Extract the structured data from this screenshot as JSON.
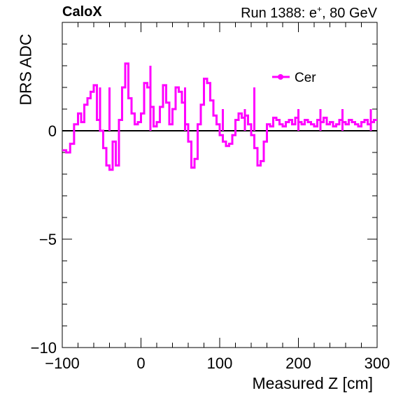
{
  "header": {
    "left_title": "CaloX",
    "right_title_prefix": "Run 1388: e",
    "right_title_sup": "+",
    "right_title_suffix": ", 80 GeV"
  },
  "chart_data": {
    "type": "line",
    "title": "",
    "xlabel": "Measured Z [cm]",
    "ylabel": "DRS ADC",
    "xlim": [
      -100,
      300
    ],
    "ylim": [
      -10,
      5
    ],
    "x_ticks": [
      -100,
      0,
      100,
      200,
      300
    ],
    "x_tick_labels": [
      "−100",
      "0",
      "100",
      "200",
      "300"
    ],
    "y_ticks": [
      -10,
      -5,
      0
    ],
    "y_tick_labels": [
      "−10",
      "−5",
      "0"
    ],
    "reference_line_y": 0,
    "legend_position": "top-right",
    "series": [
      {
        "name": "Cer",
        "color": "#ff00ff",
        "step": true,
        "x": [
          -100,
          -95,
          -90,
          -85,
          -80,
          -76,
          -72,
          -68,
          -64,
          -60,
          -56,
          -52,
          -48,
          -44,
          -40,
          -36,
          -32,
          -28,
          -24,
          -20,
          -16,
          -12,
          -8,
          -4,
          0,
          4,
          8,
          12,
          16,
          20,
          24,
          28,
          32,
          36,
          40,
          44,
          48,
          52,
          56,
          60,
          64,
          68,
          72,
          76,
          80,
          84,
          88,
          92,
          96,
          100,
          104,
          108,
          112,
          116,
          120,
          124,
          128,
          132,
          136,
          140,
          144,
          148,
          152,
          156,
          160,
          164,
          168,
          172,
          176,
          180,
          184,
          188,
          192,
          196,
          200,
          204,
          208,
          212,
          216,
          220,
          224,
          228,
          232,
          236,
          240,
          244,
          248,
          252,
          256,
          260,
          264,
          268,
          272,
          276,
          280,
          284,
          288,
          292,
          296
        ],
        "y": [
          -0.9,
          -1,
          -0.6,
          0.3,
          0.8,
          0.4,
          1.2,
          1.5,
          1.8,
          2.1,
          0.5,
          0,
          -0.8,
          -1.6,
          -1.8,
          -0.5,
          -1.6,
          0.5,
          2,
          3.1,
          1.5,
          0.8,
          0.3,
          0.4,
          0.8,
          2.2,
          2,
          1.1,
          0.2,
          0.4,
          1.1,
          2.1,
          1.3,
          0.3,
          1,
          2,
          1.8,
          1.3,
          0.3,
          -0.5,
          -1.7,
          -1.3,
          0.3,
          1.2,
          2.4,
          2.2,
          1.4,
          0.7,
          0.3,
          -0.2,
          -0.5,
          -0.7,
          -0.6,
          -0.2,
          0.5,
          0.8,
          0.6,
          0.7,
          0.3,
          -0.2,
          -0.8,
          -1.6,
          -1.4,
          -0.5,
          0.3,
          0.2,
          0.6,
          0.5,
          0.3,
          0.2,
          0.4,
          0.5,
          0.3,
          0.6,
          0.4,
          0.3,
          0.5,
          0.4,
          0.3,
          0.2,
          0.5,
          0.4,
          0.6,
          0.3,
          0.4,
          0.2,
          0.3,
          0.5,
          0.4,
          0.3,
          0.5,
          0.4,
          0.3,
          0.2,
          0.4,
          0.5,
          0.3,
          0.4,
          0.5
        ],
        "spikes": [
          [
            -64,
            0
          ],
          [
            -56,
            0
          ],
          [
            -52,
            2
          ],
          [
            -44,
            0
          ],
          [
            -40,
            2
          ],
          [
            -4,
            0
          ],
          [
            8,
            0
          ],
          [
            12,
            3
          ],
          [
            48,
            0
          ],
          [
            56,
            2
          ],
          [
            100,
            0
          ],
          [
            104,
            1
          ],
          [
            124,
            0
          ],
          [
            132,
            1
          ],
          [
            136,
            0
          ],
          [
            144,
            2
          ],
          [
            160,
            0
          ],
          [
            200,
            1
          ],
          [
            228,
            1
          ],
          [
            256,
            1
          ],
          [
            260,
            0
          ],
          [
            268,
            0
          ],
          [
            276,
            0
          ],
          [
            292,
            1
          ]
        ]
      }
    ]
  }
}
